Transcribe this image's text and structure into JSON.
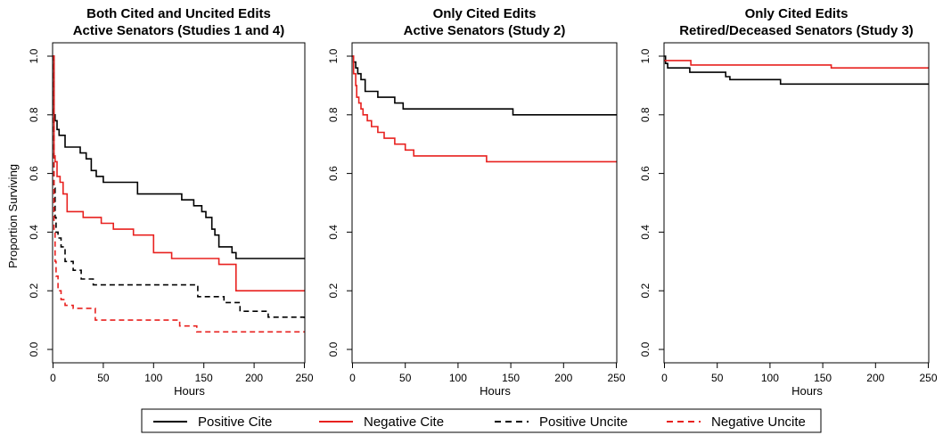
{
  "chart_data": [
    {
      "type": "line",
      "step": true,
      "title": [
        "Both Cited and Uncited Edits",
        "Active Senators (Studies 1 and 4)"
      ],
      "xlabel": "Hours",
      "ylabel": "Proportion Surviving",
      "xlim": [
        0,
        250
      ],
      "ylim": [
        0,
        1
      ],
      "xticks": [
        "0",
        "50",
        "100",
        "150",
        "200",
        "250"
      ],
      "yticks": [
        "0.0",
        "0.2",
        "0.4",
        "0.6",
        "0.8",
        "1.0"
      ],
      "series": [
        {
          "name": "Positive Cite",
          "color": "#000000",
          "dash": false,
          "x": [
            0,
            1,
            2,
            4,
            6,
            12,
            16,
            27,
            33,
            38,
            43,
            50,
            56,
            84,
            128,
            140,
            148,
            152,
            158,
            161,
            165,
            170,
            178,
            182,
            250
          ],
          "y": [
            1.0,
            0.8,
            0.78,
            0.75,
            0.73,
            0.69,
            0.69,
            0.67,
            0.65,
            0.61,
            0.59,
            0.57,
            0.57,
            0.53,
            0.51,
            0.49,
            0.47,
            0.45,
            0.41,
            0.39,
            0.35,
            0.35,
            0.33,
            0.31,
            0.31
          ]
        },
        {
          "name": "Negative Cite",
          "color": "#e8211f",
          "dash": false,
          "x": [
            0,
            1,
            2,
            4,
            7,
            10,
            14,
            30,
            48,
            60,
            80,
            100,
            118,
            165,
            182,
            250
          ],
          "y": [
            1.0,
            0.66,
            0.64,
            0.59,
            0.57,
            0.53,
            0.47,
            0.45,
            0.43,
            0.41,
            0.39,
            0.33,
            0.31,
            0.29,
            0.2,
            0.2
          ]
        },
        {
          "name": "Positive Uncite",
          "color": "#000000",
          "dash": true,
          "x": [
            0,
            1,
            2,
            3,
            5,
            8,
            12,
            20,
            28,
            40,
            144,
            170,
            186,
            214,
            250
          ],
          "y": [
            1.0,
            0.55,
            0.45,
            0.4,
            0.38,
            0.35,
            0.3,
            0.27,
            0.24,
            0.22,
            0.18,
            0.16,
            0.13,
            0.11,
            0.1
          ]
        },
        {
          "name": "Negative Uncite",
          "color": "#e8211f",
          "dash": true,
          "x": [
            0,
            1,
            2,
            3,
            5,
            8,
            12,
            20,
            42,
            126,
            143,
            250
          ],
          "y": [
            1.0,
            0.4,
            0.3,
            0.25,
            0.2,
            0.17,
            0.15,
            0.14,
            0.1,
            0.08,
            0.06,
            0.06
          ]
        }
      ]
    },
    {
      "type": "line",
      "step": true,
      "title": [
        "Only Cited Edits",
        "Active Senators (Study 2)"
      ],
      "xlabel": "Hours",
      "ylabel": "",
      "xlim": [
        0,
        250
      ],
      "ylim": [
        0,
        1
      ],
      "xticks": [
        "0",
        "50",
        "100",
        "150",
        "200",
        "250"
      ],
      "yticks": [
        "0.0",
        "0.2",
        "0.4",
        "0.6",
        "0.8",
        "1.0"
      ],
      "series": [
        {
          "name": "Positive Cite",
          "color": "#000000",
          "dash": false,
          "x": [
            0,
            1,
            3,
            5,
            8,
            12,
            24,
            40,
            48,
            152,
            250
          ],
          "y": [
            1.0,
            0.98,
            0.96,
            0.94,
            0.92,
            0.88,
            0.86,
            0.84,
            0.82,
            0.8,
            0.8
          ]
        },
        {
          "name": "Negative Cite",
          "color": "#e8211f",
          "dash": false,
          "x": [
            0,
            1,
            3,
            4,
            6,
            8,
            10,
            14,
            18,
            24,
            30,
            40,
            50,
            58,
            127,
            250
          ],
          "y": [
            1.0,
            0.94,
            0.9,
            0.86,
            0.84,
            0.82,
            0.8,
            0.78,
            0.76,
            0.74,
            0.72,
            0.7,
            0.68,
            0.66,
            0.64,
            0.64
          ]
        }
      ]
    },
    {
      "type": "line",
      "step": true,
      "title": [
        "Only Cited Edits",
        "Retired/Deceased Senators (Study 3)"
      ],
      "xlabel": "Hours",
      "ylabel": "",
      "xlim": [
        0,
        250
      ],
      "ylim": [
        0,
        1
      ],
      "xticks": [
        "0",
        "50",
        "100",
        "150",
        "200",
        "250"
      ],
      "yticks": [
        "0.0",
        "0.2",
        "0.4",
        "0.6",
        "0.8",
        "1.0"
      ],
      "series": [
        {
          "name": "Positive Cite",
          "color": "#000000",
          "dash": false,
          "x": [
            0,
            1,
            3,
            24,
            58,
            62,
            110,
            250
          ],
          "y": [
            1.0,
            0.975,
            0.96,
            0.945,
            0.93,
            0.92,
            0.905,
            0.905
          ]
        },
        {
          "name": "Negative Cite",
          "color": "#e8211f",
          "dash": false,
          "x": [
            0,
            25,
            158,
            250
          ],
          "y": [
            0.985,
            0.97,
            0.96,
            0.96
          ]
        }
      ]
    }
  ],
  "legend": {
    "items": [
      {
        "label": "Positive Cite",
        "color": "#000000",
        "dash": false
      },
      {
        "label": "Negative Cite",
        "color": "#e8211f",
        "dash": false
      },
      {
        "label": "Positive Uncite",
        "color": "#000000",
        "dash": true
      },
      {
        "label": "Negative Uncite",
        "color": "#e8211f",
        "dash": true
      }
    ]
  }
}
